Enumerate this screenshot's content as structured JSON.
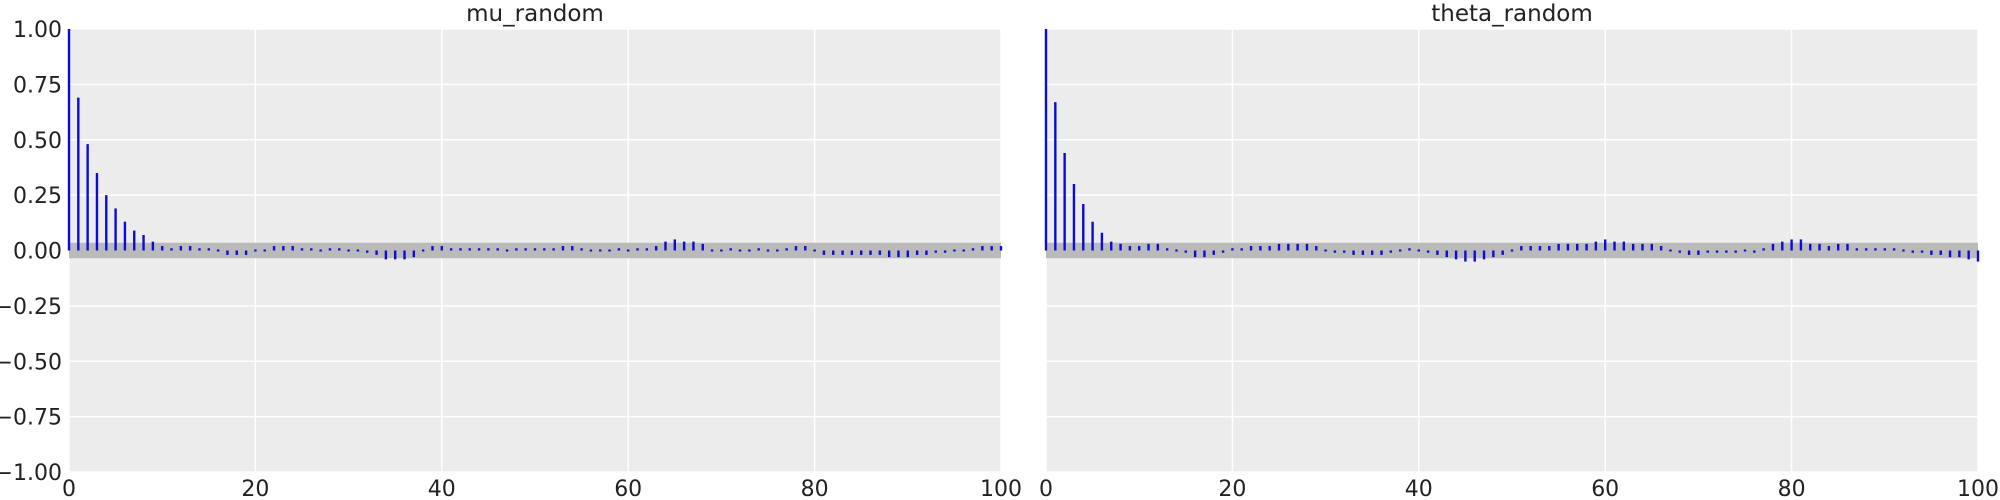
{
  "colors": {
    "panel_background": "#ececec",
    "grid": "#ffffff",
    "stem": "#0b0bd6",
    "band": "#bababa"
  },
  "chart_data": [
    {
      "type": "bar",
      "subtype": "autocorrelation-stem",
      "title": "mu_random",
      "xlabel": "",
      "ylabel": "",
      "xlim": [
        0,
        100
      ],
      "ylim": [
        -1.0,
        1.0
      ],
      "grid": true,
      "xticks": [
        "0",
        "20",
        "40",
        "60",
        "80",
        "100"
      ],
      "yticks": [
        "1.00",
        "0.75",
        "0.50",
        "0.25",
        "0.00",
        "−0.25",
        "−0.50",
        "−0.75",
        "−1.00"
      ],
      "confidence_band": [
        -0.035,
        0.035
      ],
      "lags": [
        0,
        1,
        2,
        3,
        4,
        5,
        6,
        7,
        8,
        9,
        10,
        11,
        12,
        13,
        14,
        15,
        16,
        17,
        18,
        19,
        20,
        21,
        22,
        23,
        24,
        25,
        26,
        27,
        28,
        29,
        30,
        31,
        32,
        33,
        34,
        35,
        36,
        37,
        38,
        39,
        40,
        41,
        42,
        43,
        44,
        45,
        46,
        47,
        48,
        49,
        50,
        51,
        52,
        53,
        54,
        55,
        56,
        57,
        58,
        59,
        60,
        61,
        62,
        63,
        64,
        65,
        66,
        67,
        68,
        69,
        70,
        71,
        72,
        73,
        74,
        75,
        76,
        77,
        78,
        79,
        80,
        81,
        82,
        83,
        84,
        85,
        86,
        87,
        88,
        89,
        90,
        91,
        92,
        93,
        94,
        95,
        96,
        97,
        98,
        99,
        100
      ],
      "values": [
        1.0,
        0.69,
        0.48,
        0.35,
        0.25,
        0.19,
        0.13,
        0.09,
        0.07,
        0.04,
        0.02,
        0.01,
        0.02,
        0.02,
        0.01,
        0.01,
        0.0,
        -0.02,
        -0.02,
        -0.02,
        0.0,
        0.0,
        0.02,
        0.02,
        0.02,
        0.01,
        0.01,
        0.0,
        0.01,
        0.01,
        0.0,
        0.0,
        -0.01,
        -0.02,
        -0.04,
        -0.04,
        -0.04,
        -0.03,
        0.0,
        0.02,
        0.02,
        0.01,
        0.01,
        0.01,
        0.01,
        0.01,
        0.01,
        0.0,
        0.01,
        0.01,
        0.01,
        0.01,
        0.01,
        0.02,
        0.02,
        0.01,
        0.0,
        0.0,
        0.0,
        0.01,
        0.0,
        0.01,
        0.01,
        0.02,
        0.04,
        0.05,
        0.04,
        0.04,
        0.03,
        0.0,
        0.0,
        0.01,
        0.0,
        0.0,
        0.01,
        0.0,
        0.0,
        0.01,
        0.02,
        0.02,
        0.0,
        -0.02,
        -0.02,
        -0.02,
        -0.02,
        -0.02,
        -0.02,
        -0.02,
        -0.03,
        -0.03,
        -0.03,
        -0.02,
        -0.02,
        -0.01,
        -0.01,
        0.0,
        0.0,
        0.01,
        0.02,
        0.02,
        0.02
      ]
    },
    {
      "type": "bar",
      "subtype": "autocorrelation-stem",
      "title": "theta_random",
      "xlabel": "",
      "ylabel": "",
      "xlim": [
        0,
        100
      ],
      "ylim": [
        -1.0,
        1.0
      ],
      "grid": true,
      "xticks": [
        "0",
        "20",
        "40",
        "60",
        "80",
        "100"
      ],
      "confidence_band": [
        -0.035,
        0.035
      ],
      "lags": [
        0,
        1,
        2,
        3,
        4,
        5,
        6,
        7,
        8,
        9,
        10,
        11,
        12,
        13,
        14,
        15,
        16,
        17,
        18,
        19,
        20,
        21,
        22,
        23,
        24,
        25,
        26,
        27,
        28,
        29,
        30,
        31,
        32,
        33,
        34,
        35,
        36,
        37,
        38,
        39,
        40,
        41,
        42,
        43,
        44,
        45,
        46,
        47,
        48,
        49,
        50,
        51,
        52,
        53,
        54,
        55,
        56,
        57,
        58,
        59,
        60,
        61,
        62,
        63,
        64,
        65,
        66,
        67,
        68,
        69,
        70,
        71,
        72,
        73,
        74,
        75,
        76,
        77,
        78,
        79,
        80,
        81,
        82,
        83,
        84,
        85,
        86,
        87,
        88,
        89,
        90,
        91,
        92,
        93,
        94,
        95,
        96,
        97,
        98,
        99,
        100
      ],
      "values": [
        1.0,
        0.67,
        0.44,
        0.3,
        0.21,
        0.13,
        0.08,
        0.04,
        0.03,
        0.02,
        0.02,
        0.03,
        0.03,
        0.01,
        0.0,
        -0.01,
        -0.03,
        -0.03,
        -0.02,
        -0.01,
        0.01,
        0.01,
        0.02,
        0.02,
        0.02,
        0.03,
        0.03,
        0.03,
        0.03,
        0.02,
        0.0,
        -0.01,
        -0.01,
        -0.02,
        -0.02,
        -0.02,
        -0.02,
        -0.01,
        0.0,
        0.01,
        0.0,
        -0.01,
        -0.02,
        -0.03,
        -0.04,
        -0.05,
        -0.05,
        -0.04,
        -0.03,
        -0.02,
        0.0,
        0.02,
        0.02,
        0.02,
        0.02,
        0.03,
        0.03,
        0.03,
        0.03,
        0.04,
        0.05,
        0.04,
        0.04,
        0.03,
        0.03,
        0.03,
        0.02,
        0.0,
        -0.01,
        -0.02,
        -0.02,
        -0.01,
        -0.01,
        -0.01,
        -0.01,
        0.0,
        -0.01,
        0.01,
        0.03,
        0.04,
        0.05,
        0.05,
        0.03,
        0.03,
        0.02,
        0.03,
        0.03,
        0.01,
        0.01,
        0.01,
        0.01,
        0.01,
        0.0,
        -0.01,
        -0.01,
        -0.02,
        -0.02,
        -0.03,
        -0.03,
        -0.04,
        -0.05
      ]
    }
  ]
}
